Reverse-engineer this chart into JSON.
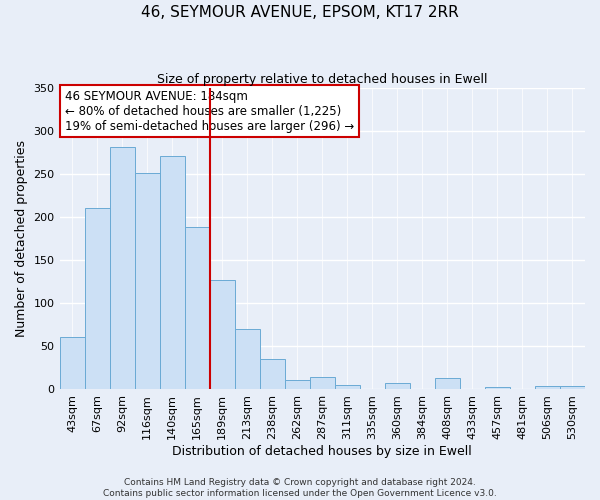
{
  "title1": "46, SEYMOUR AVENUE, EPSOM, KT17 2RR",
  "title2": "Size of property relative to detached houses in Ewell",
  "xlabel": "Distribution of detached houses by size in Ewell",
  "ylabel": "Number of detached properties",
  "bar_labels": [
    "43sqm",
    "67sqm",
    "92sqm",
    "116sqm",
    "140sqm",
    "165sqm",
    "189sqm",
    "213sqm",
    "238sqm",
    "262sqm",
    "287sqm",
    "311sqm",
    "335sqm",
    "360sqm",
    "384sqm",
    "408sqm",
    "433sqm",
    "457sqm",
    "481sqm",
    "506sqm",
    "530sqm"
  ],
  "bar_values": [
    60,
    210,
    281,
    251,
    271,
    188,
    127,
    70,
    35,
    10,
    14,
    5,
    0,
    7,
    0,
    13,
    0,
    2,
    0,
    4,
    3
  ],
  "bar_color": "#cce0f5",
  "bar_edge_color": "#6aaad4",
  "vline_color": "#cc0000",
  "annotation_title": "46 SEYMOUR AVENUE: 184sqm",
  "annotation_line1": "← 80% of detached houses are smaller (1,225)",
  "annotation_line2": "19% of semi-detached houses are larger (296) →",
  "annotation_box_color": "white",
  "annotation_box_edge": "#cc0000",
  "ylim": [
    0,
    350
  ],
  "yticks": [
    0,
    50,
    100,
    150,
    200,
    250,
    300,
    350
  ],
  "footer1": "Contains HM Land Registry data © Crown copyright and database right 2024.",
  "footer2": "Contains public sector information licensed under the Open Government Licence v3.0.",
  "bg_color": "#e8eef8",
  "plot_bg_color": "#e8eef8",
  "grid_color": "#ffffff",
  "title1_fontsize": 11,
  "title2_fontsize": 9,
  "xlabel_fontsize": 9,
  "ylabel_fontsize": 9,
  "tick_fontsize": 8,
  "ann_fontsize": 8.5,
  "footer_fontsize": 6.5
}
